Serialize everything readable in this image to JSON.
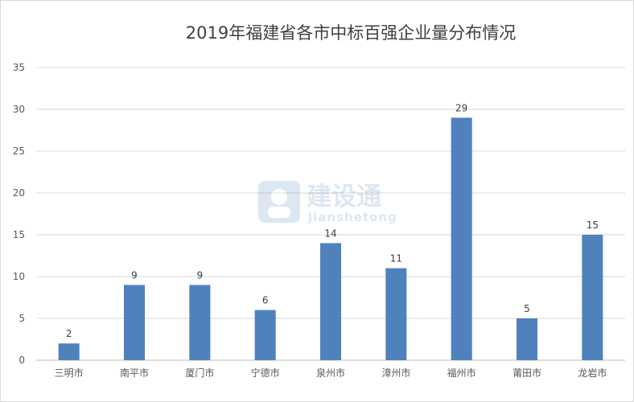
{
  "chart_data": {
    "type": "bar",
    "title": "2019年福建省各市中标百强企业量分布情况",
    "categories": [
      "三明市",
      "南平市",
      "厦门市",
      "宁德市",
      "泉州市",
      "漳州市",
      "福州市",
      "莆田市",
      "龙岩市"
    ],
    "values": [
      2,
      9,
      9,
      6,
      14,
      11,
      29,
      5,
      15
    ],
    "ylim": [
      0,
      35
    ],
    "yticks": [
      0,
      5,
      10,
      15,
      20,
      25,
      30,
      35
    ],
    "grid": true,
    "legend": "none",
    "bar_color": "#4f81bd",
    "data_labels": true
  },
  "watermark": {
    "text": "建设通",
    "subtext": "jianshetong"
  }
}
